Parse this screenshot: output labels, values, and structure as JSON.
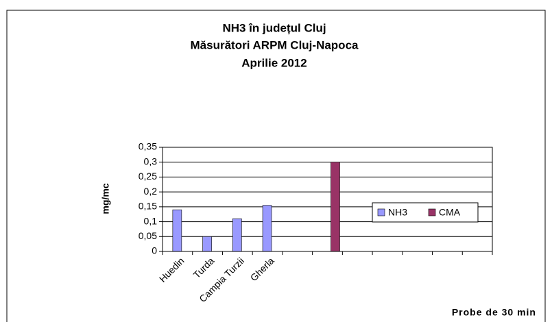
{
  "chart_data": {
    "type": "bar",
    "title": [
      "NH3 în județul Cluj",
      "Măsurători ARPM Cluj-Napoca",
      "Aprilie 2012"
    ],
    "xlabel": "Probe de 30 min",
    "ylabel": "mg/mc",
    "categories": [
      "Huedin",
      "Turda",
      "Campia Turzii",
      "Gherla",
      null,
      null,
      null,
      null,
      null,
      null,
      null
    ],
    "series": [
      {
        "name": "NH3",
        "color": "#9999ff",
        "values": [
          0.14,
          0.05,
          0.11,
          0.155,
          null,
          null,
          null,
          null,
          null,
          null,
          null
        ]
      },
      {
        "name": "CMA",
        "color": "#993366",
        "values": [
          null,
          null,
          null,
          null,
          null,
          0.3,
          null,
          null,
          null,
          null,
          null
        ]
      }
    ],
    "ylim": [
      0,
      0.35
    ],
    "yticks": [
      {
        "value": 0,
        "label": "0"
      },
      {
        "value": 0.05,
        "label": "0,05"
      },
      {
        "value": 0.1,
        "label": "0,1"
      },
      {
        "value": 0.15,
        "label": "0,15"
      },
      {
        "value": 0.2,
        "label": "0,2"
      },
      {
        "value": 0.25,
        "label": "0,25"
      },
      {
        "value": 0.3,
        "label": "0,3"
      },
      {
        "value": 0.35,
        "label": "0,35"
      }
    ],
    "grid": true,
    "legend": "right"
  }
}
